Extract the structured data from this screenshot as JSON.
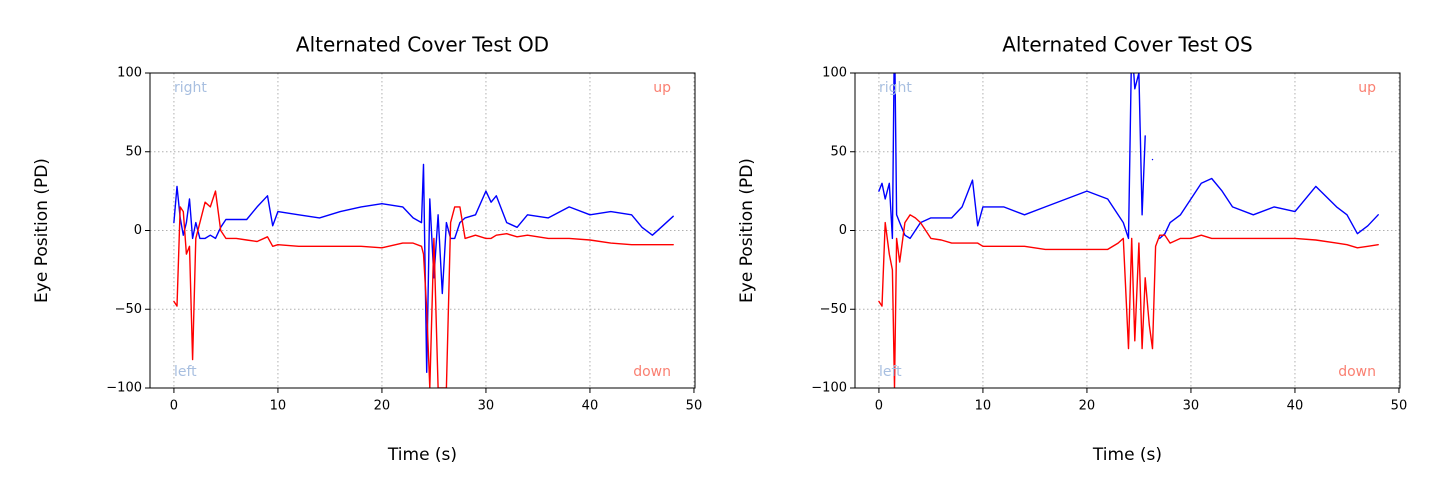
{
  "chart_data": [
    {
      "type": "line",
      "title": "Alternated Cover Test OD",
      "xlabel": "Time (s)",
      "ylabel": "Eye Position (PD)",
      "x": [
        0,
        0.3,
        0.6,
        0.9,
        1.2,
        1.5,
        1.8,
        2.1,
        2.5,
        3,
        3.5,
        4,
        4.5,
        5,
        6,
        7,
        8,
        9,
        9.5,
        10,
        12,
        14,
        16,
        18,
        20,
        22,
        23,
        23.8,
        24,
        24.3,
        24.6,
        25,
        25.4,
        25.8,
        26.2,
        26.6,
        27,
        27.5,
        28,
        29,
        30,
        30.5,
        31,
        32,
        33,
        34,
        36,
        38,
        40,
        42,
        44,
        45,
        46,
        47,
        48
      ],
      "series": [
        {
          "color": "#0000ff",
          "values": [
            5,
            28,
            8,
            -3,
            5,
            20,
            -5,
            5,
            -5,
            -5,
            -3,
            -5,
            2,
            7,
            7,
            7,
            15,
            22,
            3,
            12,
            10,
            8,
            12,
            15,
            17,
            15,
            8,
            5,
            42,
            -90,
            20,
            -30,
            10,
            -40,
            5,
            -5,
            -5,
            5,
            8,
            10,
            25,
            18,
            22,
            5,
            2,
            10,
            8,
            15,
            10,
            12,
            10,
            2,
            -3,
            3,
            9
          ]
        },
        {
          "color": "#ff0000",
          "values": [
            -45,
            -48,
            15,
            12,
            -15,
            -10,
            -82,
            -5,
            5,
            18,
            15,
            25,
            0,
            -5,
            -5,
            -6,
            -7,
            -4,
            -10,
            -9,
            -10,
            -10,
            -10,
            -10,
            -11,
            -8,
            -8,
            -10,
            -15,
            -50,
            -100,
            -5,
            -100,
            -100,
            -100,
            5,
            15,
            15,
            -5,
            -3,
            -5,
            -5,
            -3,
            -2,
            -4,
            -3,
            -5,
            -5,
            -6,
            -8,
            -9,
            -9,
            -9,
            -9,
            -9
          ]
        }
      ],
      "annotations": [
        {
          "text": "right",
          "color": "#a8bfe0"
        },
        {
          "text": "left",
          "color": "#a8bfe0"
        },
        {
          "text": "up",
          "color": "#fa8072"
        },
        {
          "text": "down",
          "color": "#fa8072"
        }
      ],
      "xlim": [
        -2.3,
        50.1
      ],
      "xticks": [
        0,
        10,
        20,
        30,
        40,
        50
      ],
      "ylim": [
        -100,
        100
      ],
      "yticks": [
        {
          "value": -100,
          "label": "−100"
        },
        {
          "value": -50,
          "label": "−50"
        },
        0,
        50,
        100
      ],
      "grid": true
    },
    {
      "type": "line",
      "title": "Alternated Cover Test OS",
      "xlabel": "Time (s)",
      "ylabel": "Eye Position (PD)",
      "x": [
        0,
        0.3,
        0.6,
        1,
        1.3,
        1.5,
        1.7,
        2,
        2.5,
        3,
        3.5,
        4,
        5,
        6,
        7,
        8,
        9,
        9.5,
        10,
        12,
        14,
        16,
        18,
        20,
        22,
        23,
        23.5,
        24,
        24.3,
        24.6,
        25,
        25.3,
        25.6,
        26,
        26.3,
        26.6,
        27,
        27.5,
        28,
        29,
        30,
        31,
        32,
        33,
        34,
        36,
        38,
        40,
        42,
        44,
        45,
        46,
        47,
        48
      ],
      "series": [
        {
          "color": "#0000ff",
          "values": [
            25,
            30,
            20,
            30,
            -5,
            130,
            10,
            5,
            -3,
            -5,
            0,
            5,
            8,
            8,
            8,
            15,
            32,
            3,
            15,
            15,
            10,
            15,
            20,
            25,
            20,
            10,
            5,
            -5,
            120,
            90,
            100,
            10,
            60,
            null,
            45,
            null,
            -5,
            -2,
            5,
            10,
            20,
            30,
            33,
            25,
            15,
            10,
            15,
            12,
            28,
            15,
            10,
            -2,
            3,
            10
          ]
        },
        {
          "color": "#ff0000",
          "values": [
            -45,
            -48,
            5,
            -15,
            -25,
            -100,
            -5,
            -20,
            5,
            10,
            8,
            5,
            -5,
            -6,
            -8,
            -8,
            -8,
            -8,
            -10,
            -10,
            -10,
            -12,
            -12,
            -12,
            -12,
            -8,
            -5,
            -75,
            -5,
            -70,
            -8,
            -75,
            -30,
            -60,
            -75,
            -10,
            -3,
            -3,
            -8,
            -5,
            -5,
            -3,
            -5,
            -5,
            -5,
            -5,
            -5,
            -5,
            -6,
            -8,
            -9,
            -11,
            -10,
            -9
          ]
        }
      ],
      "annotations": [
        {
          "text": "right",
          "color": "#a8bfe0"
        },
        {
          "text": "left",
          "color": "#a8bfe0"
        },
        {
          "text": "up",
          "color": "#fa8072"
        },
        {
          "text": "down",
          "color": "#fa8072"
        }
      ],
      "xlim": [
        -2.3,
        50.1
      ],
      "xticks": [
        0,
        10,
        20,
        30,
        40,
        50
      ],
      "ylim": [
        -100,
        100
      ],
      "yticks": [
        {
          "value": -100,
          "label": "−100"
        },
        {
          "value": -50,
          "label": "−50"
        },
        0,
        50,
        100
      ],
      "grid": true
    }
  ]
}
